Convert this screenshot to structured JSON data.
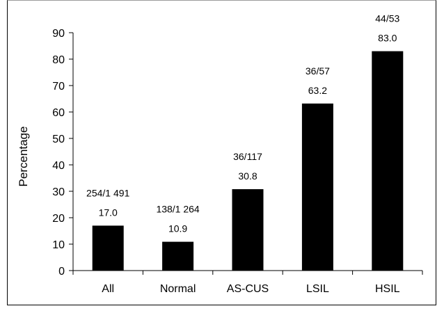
{
  "chart_data": {
    "type": "bar",
    "title": "",
    "xlabel": "",
    "ylabel": "Percentage",
    "ylim": [
      0,
      90
    ],
    "yticks": [
      "0",
      "10",
      "20",
      "30",
      "40",
      "50",
      "60",
      "70",
      "80",
      "90"
    ],
    "grid": false,
    "legend": "none",
    "bar_color": "#000000",
    "categories": [
      "All",
      "Normal",
      "AS-CUS",
      "LSIL",
      "HSIL"
    ],
    "values": [
      17.0,
      10.9,
      30.8,
      63.2,
      83.0
    ],
    "data_labels_top": [
      "254/1 491",
      "138/1 264",
      "36/117",
      "36/57",
      "44/53"
    ],
    "data_labels_bottom": [
      "17.0",
      "10.9",
      "30.8",
      "63.2",
      "83.0"
    ]
  }
}
